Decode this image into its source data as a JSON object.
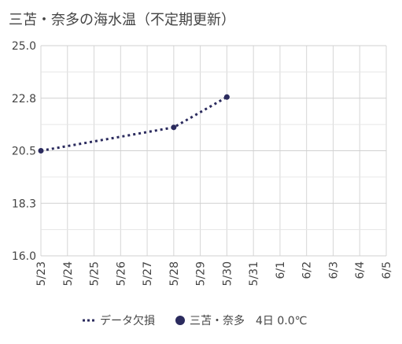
{
  "chart_data": {
    "type": "line",
    "title": "三苫・奈多の海水温（不定期更新）",
    "x": [
      "5/23",
      "5/24",
      "5/25",
      "5/26",
      "5/27",
      "5/28",
      "5/29",
      "5/30",
      "5/31",
      "6/1",
      "6/2",
      "6/3",
      "6/4",
      "6/5"
    ],
    "ylim": [
      16.0,
      25.0
    ],
    "y_ticks": [
      "25.0",
      "22.8",
      "20.5",
      "18.3",
      "16.0"
    ],
    "grid": true,
    "legend_position": "bottom",
    "series": [
      {
        "name": "データ欠損",
        "style": "dotted",
        "color": "#2b2b5e",
        "points": [
          {
            "x": "5/23",
            "y": 20.5
          },
          {
            "x": "5/28",
            "y": 21.5
          },
          {
            "x": "5/30",
            "y": 22.8
          }
        ]
      },
      {
        "name": "三苫・奈多　4日 0.0℃",
        "style": "marker",
        "color": "#2b2b5e",
        "points": [
          {
            "x": "5/23",
            "y": 20.5
          },
          {
            "x": "5/28",
            "y": 21.5
          },
          {
            "x": "5/30",
            "y": 22.8
          }
        ]
      }
    ]
  }
}
